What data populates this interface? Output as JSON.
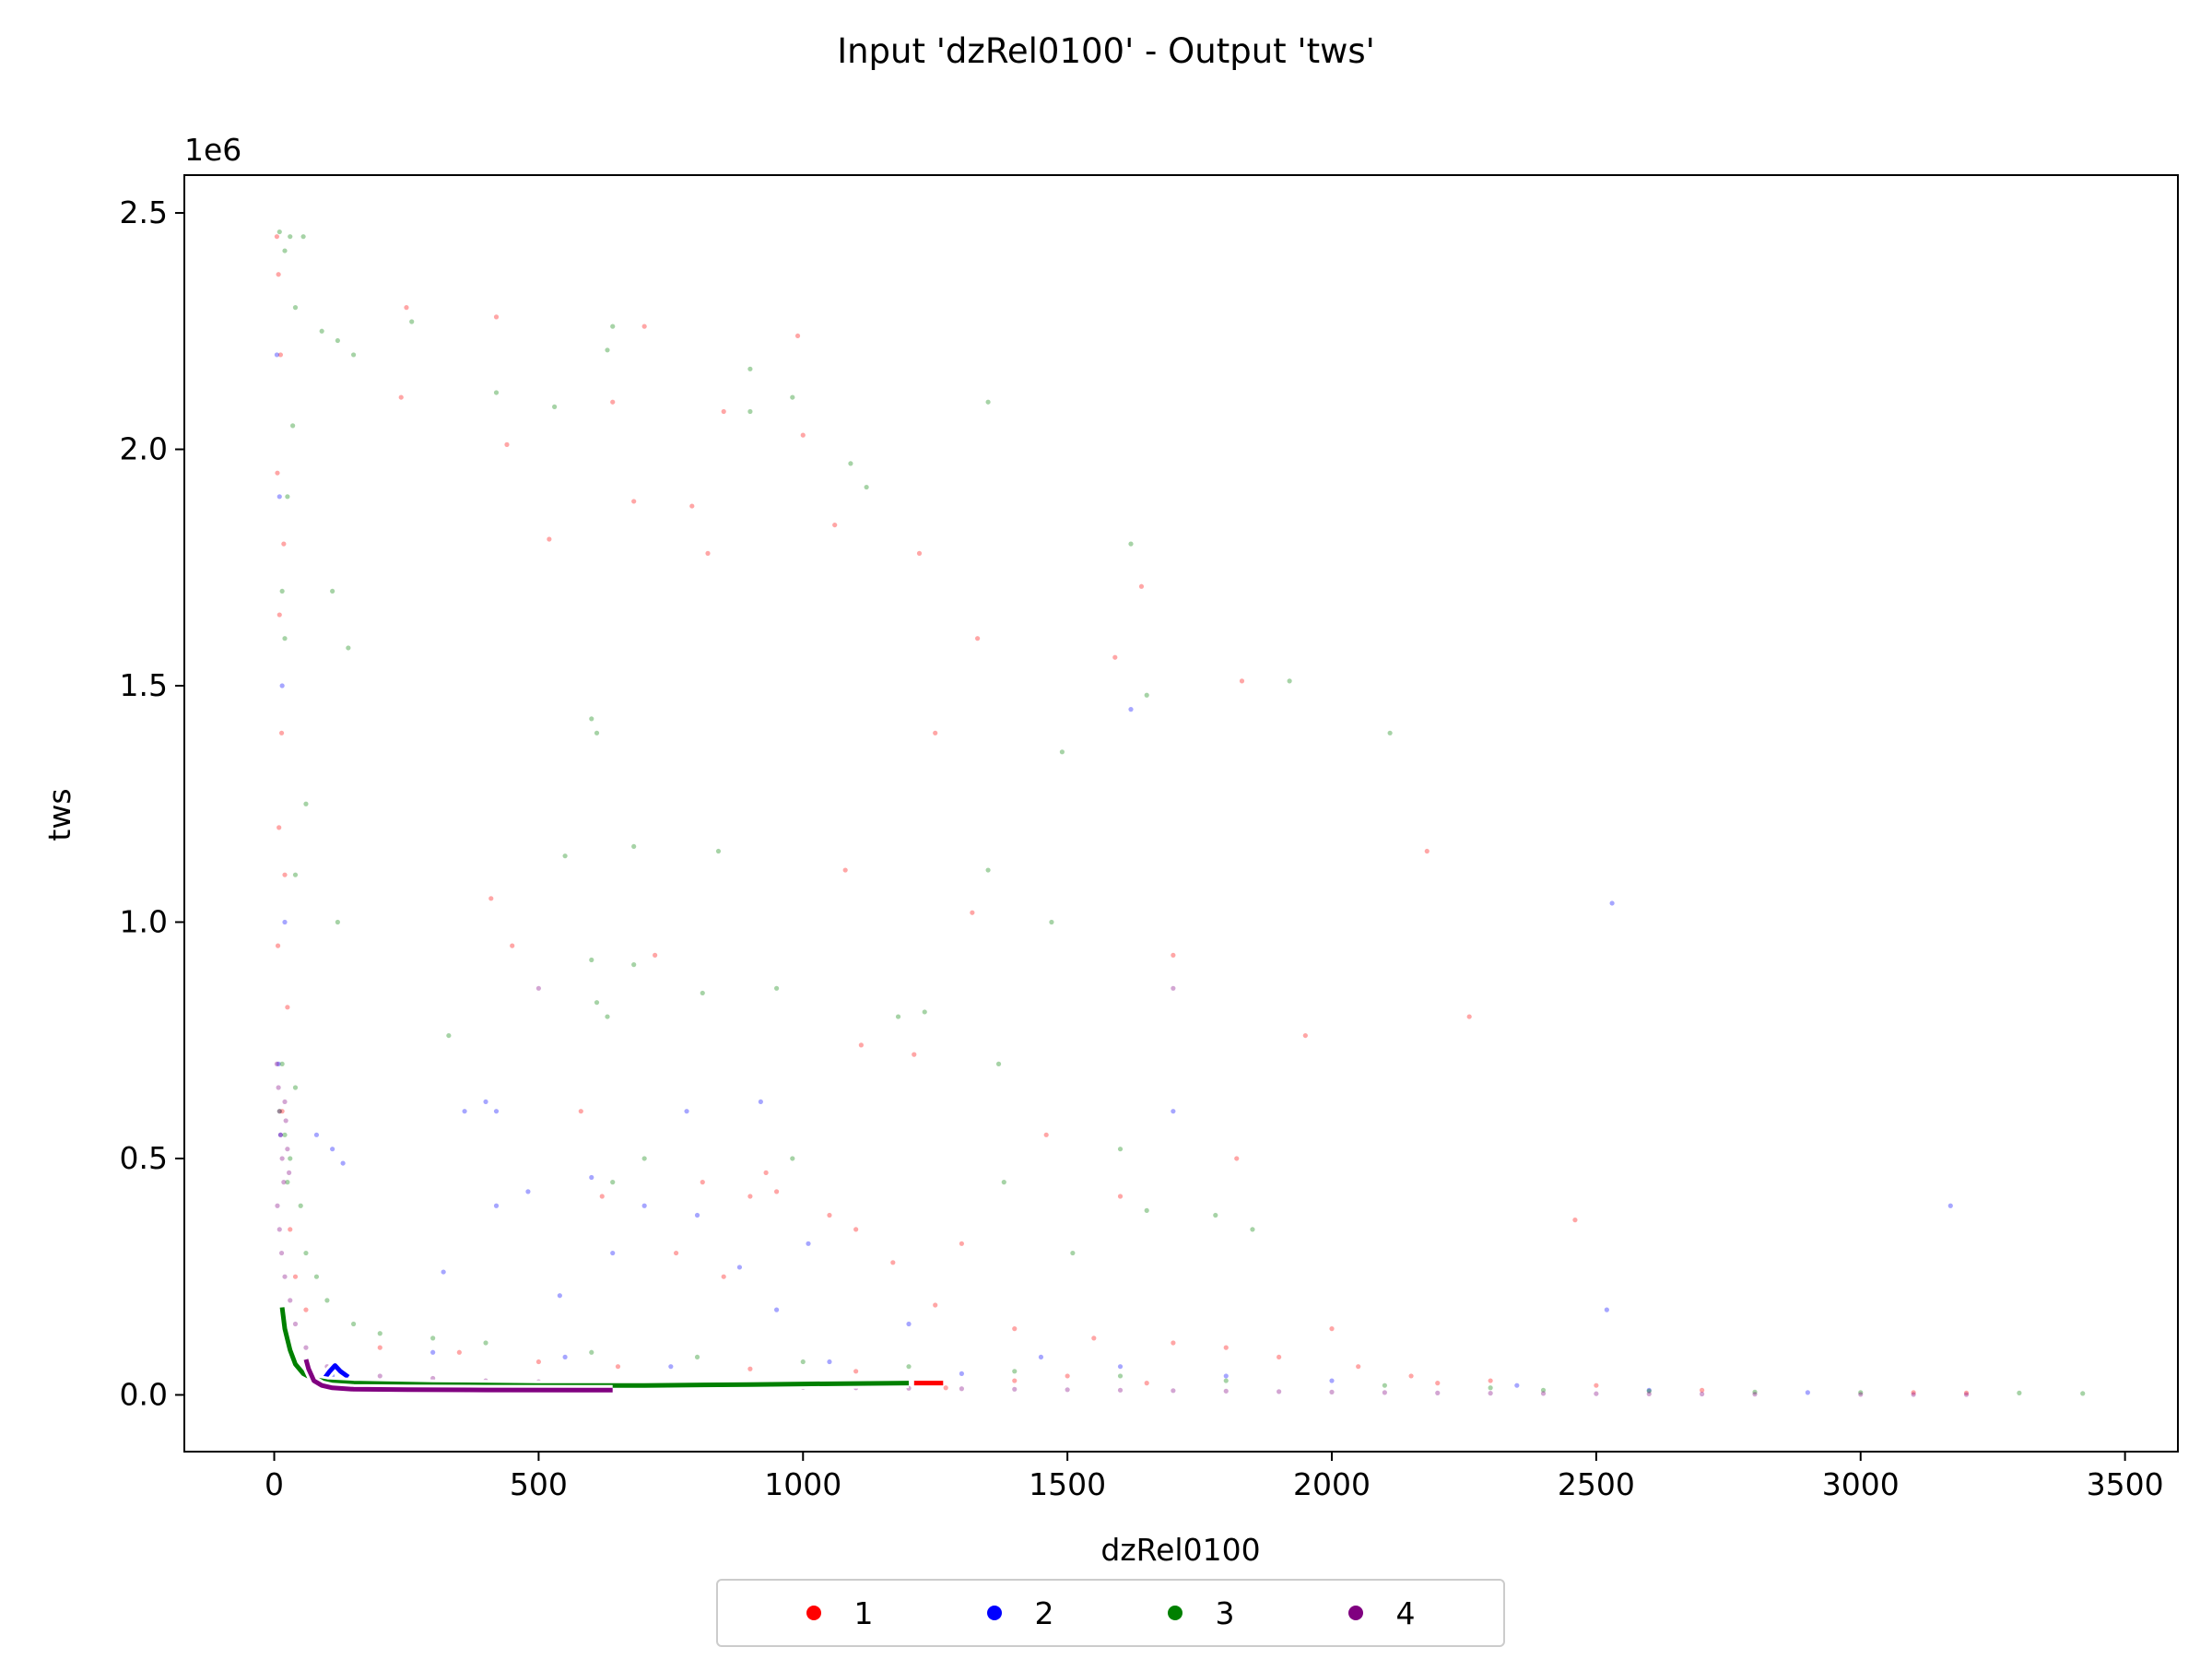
{
  "chart_data": {
    "type": "scatter",
    "title": "Input 'dzRel0100' - Output 'tws'",
    "xlabel": "dzRel0100",
    "ylabel": "tws",
    "y_offset_label": "1e6",
    "xlim": [
      -170,
      3600
    ],
    "ylim": [
      -120000,
      2580000
    ],
    "x_ticks": [
      0,
      500,
      1000,
      1500,
      2000,
      2500,
      3000,
      3500
    ],
    "x_tick_labels": [
      "0",
      "500",
      "1000",
      "1500",
      "2000",
      "2500",
      "3000",
      "3500"
    ],
    "y_ticks": [
      0,
      500000,
      1000000,
      1500000,
      2000000,
      2500000
    ],
    "y_tick_labels": [
      "0.0",
      "0.5",
      "1.0",
      "1.5",
      "2.0",
      "2.5"
    ],
    "grid": false,
    "legend_position": "bottom-center",
    "series": [
      {
        "name": "1",
        "color": "#ff0000",
        "points": [
          [
            5,
            2450000
          ],
          [
            8,
            2370000
          ],
          [
            12,
            2200000
          ],
          [
            6,
            1950000
          ],
          [
            18,
            1800000
          ],
          [
            10,
            1650000
          ],
          [
            14,
            1400000
          ],
          [
            9,
            1200000
          ],
          [
            20,
            1100000
          ],
          [
            7,
            950000
          ],
          [
            25,
            820000
          ],
          [
            15,
            600000
          ],
          [
            30,
            350000
          ],
          [
            40,
            250000
          ],
          [
            60,
            180000
          ],
          [
            250,
            2300000
          ],
          [
            420,
            2280000
          ],
          [
            700,
            2260000
          ],
          [
            990,
            2240000
          ],
          [
            240,
            2110000
          ],
          [
            440,
            2010000
          ],
          [
            640,
            2100000
          ],
          [
            850,
            2080000
          ],
          [
            1000,
            2030000
          ],
          [
            520,
            1810000
          ],
          [
            680,
            1890000
          ],
          [
            790,
            1880000
          ],
          [
            1060,
            1840000
          ],
          [
            1220,
            1780000
          ],
          [
            820,
            1780000
          ],
          [
            1330,
            1600000
          ],
          [
            1590,
            1560000
          ],
          [
            1640,
            1710000
          ],
          [
            1830,
            1510000
          ],
          [
            1250,
            1400000
          ],
          [
            1080,
            1110000
          ],
          [
            2180,
            1150000
          ],
          [
            410,
            1050000
          ],
          [
            1320,
            1020000
          ],
          [
            1700,
            930000
          ],
          [
            2260,
            800000
          ],
          [
            450,
            950000
          ],
          [
            720,
            930000
          ],
          [
            1110,
            740000
          ],
          [
            1210,
            720000
          ],
          [
            1950,
            760000
          ],
          [
            1460,
            550000
          ],
          [
            1820,
            500000
          ],
          [
            1600,
            420000
          ],
          [
            2460,
            370000
          ],
          [
            580,
            600000
          ],
          [
            810,
            450000
          ],
          [
            900,
            420000
          ],
          [
            950,
            430000
          ],
          [
            1100,
            350000
          ],
          [
            1300,
            320000
          ],
          [
            760,
            300000
          ],
          [
            850,
            250000
          ],
          [
            1250,
            190000
          ],
          [
            1400,
            140000
          ],
          [
            1550,
            120000
          ],
          [
            1700,
            110000
          ],
          [
            1800,
            100000
          ],
          [
            1900,
            80000
          ],
          [
            2000,
            140000
          ],
          [
            2050,
            60000
          ],
          [
            2150,
            40000
          ],
          [
            2300,
            30000
          ],
          [
            2500,
            20000
          ],
          [
            2700,
            10000
          ],
          [
            3100,
            5000
          ],
          [
            3200,
            4000
          ],
          [
            200,
            100000
          ],
          [
            350,
            90000
          ],
          [
            500,
            70000
          ],
          [
            650,
            60000
          ],
          [
            900,
            55000
          ],
          [
            1100,
            50000
          ],
          [
            1270,
            15000
          ],
          [
            1400,
            30000
          ],
          [
            1500,
            40000
          ],
          [
            1650,
            25000
          ],
          [
            2200,
            25000
          ],
          [
            620,
            420000
          ],
          [
            930,
            470000
          ],
          [
            1050,
            380000
          ],
          [
            1170,
            280000
          ]
        ]
      },
      {
        "name": "2",
        "color": "#0000ff",
        "points": [
          [
            5,
            2200000
          ],
          [
            10,
            1900000
          ],
          [
            15,
            1500000
          ],
          [
            20,
            1000000
          ],
          [
            8,
            700000
          ],
          [
            12,
            550000
          ],
          [
            80,
            550000
          ],
          [
            110,
            520000
          ],
          [
            130,
            490000
          ],
          [
            400,
            620000
          ],
          [
            420,
            600000
          ],
          [
            360,
            600000
          ],
          [
            780,
            600000
          ],
          [
            920,
            620000
          ],
          [
            1700,
            600000
          ],
          [
            600,
            460000
          ],
          [
            700,
            400000
          ],
          [
            800,
            380000
          ],
          [
            420,
            400000
          ],
          [
            480,
            430000
          ],
          [
            640,
            300000
          ],
          [
            880,
            270000
          ],
          [
            1010,
            320000
          ],
          [
            1620,
            1450000
          ],
          [
            2530,
            1040000
          ],
          [
            3170,
            400000
          ],
          [
            2520,
            180000
          ],
          [
            320,
            260000
          ],
          [
            540,
            210000
          ],
          [
            950,
            180000
          ],
          [
            1200,
            150000
          ],
          [
            1450,
            80000
          ],
          [
            1600,
            60000
          ],
          [
            1800,
            40000
          ],
          [
            2000,
            30000
          ],
          [
            2350,
            20000
          ],
          [
            2600,
            10000
          ],
          [
            2900,
            5000
          ],
          [
            110,
            40000
          ],
          [
            120,
            60000
          ],
          [
            300,
            90000
          ],
          [
            550,
            80000
          ],
          [
            750,
            60000
          ],
          [
            1050,
            70000
          ],
          [
            1300,
            45000
          ]
        ]
      },
      {
        "name": "3",
        "color": "#008000",
        "points": [
          [
            10,
            2460000
          ],
          [
            20,
            2420000
          ],
          [
            30,
            2450000
          ],
          [
            55,
            2450000
          ],
          [
            40,
            2300000
          ],
          [
            90,
            2250000
          ],
          [
            120,
            2230000
          ],
          [
            150,
            2200000
          ],
          [
            260,
            2270000
          ],
          [
            640,
            2260000
          ],
          [
            630,
            2210000
          ],
          [
            420,
            2120000
          ],
          [
            530,
            2090000
          ],
          [
            900,
            2170000
          ],
          [
            900,
            2080000
          ],
          [
            980,
            2110000
          ],
          [
            1090,
            1970000
          ],
          [
            1120,
            1920000
          ],
          [
            1350,
            2100000
          ],
          [
            1620,
            1800000
          ],
          [
            1650,
            1480000
          ],
          [
            1920,
            1510000
          ],
          [
            2110,
            1400000
          ],
          [
            1490,
            1360000
          ],
          [
            600,
            1430000
          ],
          [
            610,
            1400000
          ],
          [
            680,
            1160000
          ],
          [
            840,
            1150000
          ],
          [
            1350,
            1110000
          ],
          [
            550,
            1140000
          ],
          [
            120,
            1000000
          ],
          [
            60,
            1250000
          ],
          [
            40,
            1100000
          ],
          [
            20,
            1600000
          ],
          [
            25,
            1900000
          ],
          [
            35,
            2050000
          ],
          [
            15,
            1700000
          ],
          [
            140,
            1580000
          ],
          [
            110,
            1700000
          ],
          [
            600,
            920000
          ],
          [
            680,
            910000
          ],
          [
            810,
            850000
          ],
          [
            1180,
            800000
          ],
          [
            1230,
            810000
          ],
          [
            1370,
            700000
          ],
          [
            1470,
            1000000
          ],
          [
            330,
            760000
          ],
          [
            610,
            830000
          ],
          [
            630,
            800000
          ],
          [
            950,
            860000
          ],
          [
            1600,
            520000
          ],
          [
            1650,
            390000
          ],
          [
            1780,
            380000
          ],
          [
            1850,
            350000
          ],
          [
            1510,
            300000
          ],
          [
            700,
            500000
          ],
          [
            980,
            500000
          ],
          [
            640,
            450000
          ],
          [
            1380,
            450000
          ],
          [
            2100,
            20000
          ],
          [
            2300,
            15000
          ],
          [
            2400,
            10000
          ],
          [
            2600,
            8000
          ],
          [
            2800,
            6000
          ],
          [
            3000,
            5000
          ],
          [
            3420,
            3000
          ],
          [
            3300,
            4000
          ],
          [
            15,
            700000
          ],
          [
            10,
            600000
          ],
          [
            20,
            550000
          ],
          [
            30,
            500000
          ],
          [
            25,
            450000
          ],
          [
            40,
            650000
          ],
          [
            50,
            400000
          ],
          [
            60,
            300000
          ],
          [
            80,
            250000
          ],
          [
            100,
            200000
          ],
          [
            150,
            150000
          ],
          [
            200,
            130000
          ],
          [
            300,
            120000
          ],
          [
            400,
            110000
          ],
          [
            600,
            90000
          ],
          [
            800,
            80000
          ],
          [
            1000,
            70000
          ],
          [
            1200,
            60000
          ],
          [
            1400,
            50000
          ],
          [
            1600,
            40000
          ],
          [
            1800,
            30000
          ]
        ]
      },
      {
        "name": "4",
        "color": "#800080",
        "points": [
          [
            5,
            700000
          ],
          [
            8,
            650000
          ],
          [
            10,
            600000
          ],
          [
            12,
            550000
          ],
          [
            15,
            500000
          ],
          [
            18,
            450000
          ],
          [
            20,
            620000
          ],
          [
            22,
            580000
          ],
          [
            25,
            520000
          ],
          [
            28,
            470000
          ],
          [
            6,
            400000
          ],
          [
            10,
            350000
          ],
          [
            14,
            300000
          ],
          [
            20,
            250000
          ],
          [
            30,
            200000
          ],
          [
            40,
            150000
          ],
          [
            60,
            100000
          ],
          [
            100,
            60000
          ],
          [
            200,
            40000
          ],
          [
            300,
            35000
          ],
          [
            400,
            30000
          ],
          [
            500,
            28000
          ],
          [
            600,
            25000
          ],
          [
            700,
            22000
          ],
          [
            800,
            20000
          ],
          [
            900,
            18000
          ],
          [
            1000,
            16000
          ],
          [
            1100,
            15000
          ],
          [
            1200,
            14000
          ],
          [
            1300,
            13000
          ],
          [
            1400,
            12000
          ],
          [
            1500,
            11000
          ],
          [
            1600,
            10000
          ],
          [
            1700,
            9000
          ],
          [
            1800,
            8000
          ],
          [
            1900,
            7000
          ],
          [
            2000,
            6000
          ],
          [
            2100,
            5000
          ],
          [
            2200,
            4000
          ],
          [
            2300,
            3500
          ],
          [
            2400,
            3000
          ],
          [
            2500,
            2500
          ],
          [
            2600,
            2000
          ],
          [
            2700,
            1800
          ],
          [
            2800,
            1500
          ],
          [
            3000,
            1000
          ],
          [
            3100,
            800
          ],
          [
            3200,
            600
          ],
          [
            500,
            860000
          ],
          [
            1700,
            860000
          ]
        ]
      }
    ],
    "trend_lines": [
      {
        "name": "1",
        "color": "#ff0000",
        "x": [
          1210,
          1265
        ],
        "y": [
          25000,
          25000
        ]
      },
      {
        "name": "2",
        "color": "#0000ff",
        "x": [
          95,
          105,
          115,
          125,
          140
        ],
        "y": [
          35000,
          50000,
          62000,
          50000,
          38000
        ]
      },
      {
        "name": "3",
        "color": "#008000",
        "x": [
          15,
          20,
          30,
          40,
          55,
          75,
          100,
          150,
          300,
          500,
          640,
          700,
          900,
          1000,
          1100,
          1200
        ],
        "y": [
          185000,
          140000,
          95000,
          65000,
          45000,
          33000,
          28000,
          25000,
          22000,
          20000,
          20000,
          20000,
          22000,
          23000,
          24000,
          25000
        ]
      },
      {
        "name": "4",
        "color": "#800080",
        "x": [
          60,
          65,
          75,
          90,
          110,
          150,
          250,
          400,
          640
        ],
        "y": [
          75000,
          55000,
          30000,
          20000,
          15000,
          12000,
          11000,
          10500,
          10000
        ]
      }
    ]
  }
}
